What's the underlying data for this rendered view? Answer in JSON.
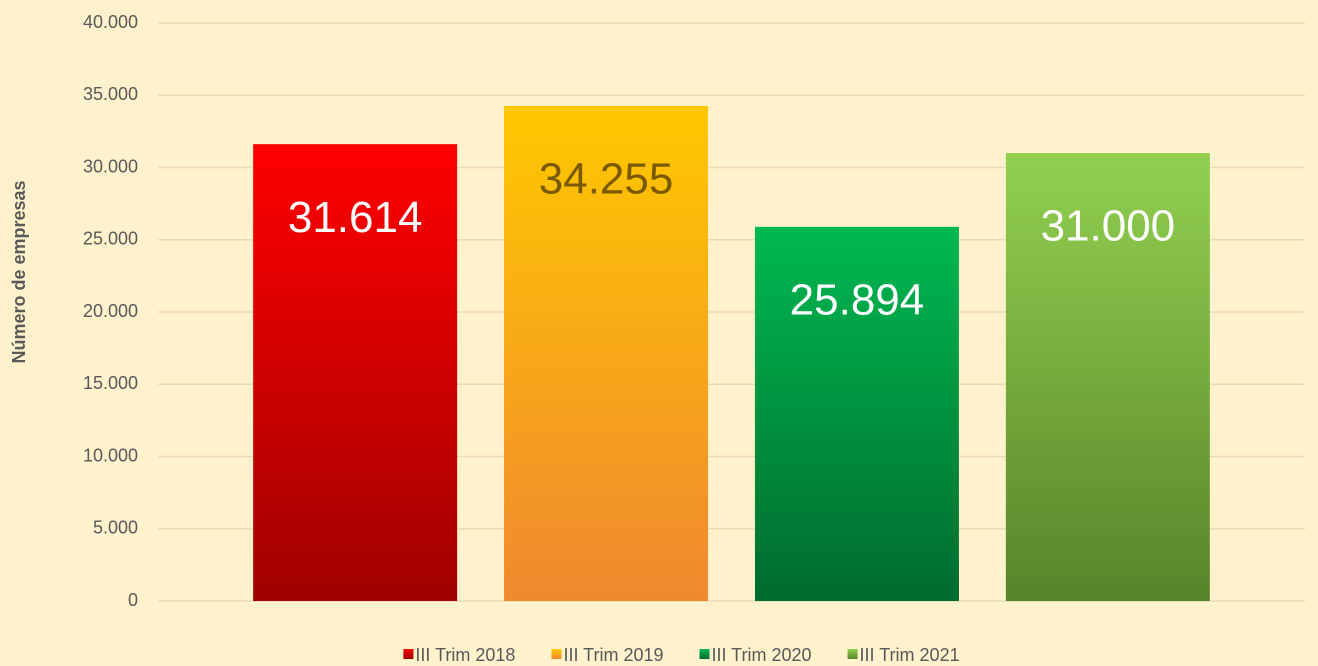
{
  "chart_data": {
    "type": "bar",
    "y_label": "Número de empresas",
    "categories": [
      null
    ],
    "series": [
      {
        "name": "III Trim 2018",
        "color": "#ff0000",
        "color_end": "#a00000",
        "label_color": "#ffffff",
        "values": [
          31614
        ],
        "value_labels": [
          "31.614"
        ]
      },
      {
        "name": "III Trim 2019",
        "color": "#ffc800",
        "color_end": "#f08830",
        "label_color": "#7a5a00",
        "values": [
          34255
        ],
        "value_labels": [
          "34.255"
        ]
      },
      {
        "name": "III Trim 2020",
        "color": "#00b850",
        "color_end": "#006b2e",
        "label_color": "#ffffff",
        "values": [
          25894
        ],
        "value_labels": [
          "25.894"
        ]
      },
      {
        "name": "III Trim 2021",
        "color": "#92d050",
        "color_end": "#58842a",
        "label_color": "#ffffff",
        "values": [
          31000
        ],
        "value_labels": [
          "31.000"
        ]
      }
    ],
    "ylim": [
      0,
      40000
    ],
    "yticks": [
      {
        "value": 0,
        "label": "0"
      },
      {
        "value": 5000,
        "label": "5.000"
      },
      {
        "value": 10000,
        "label": "10.000"
      },
      {
        "value": 15000,
        "label": "15.000"
      },
      {
        "value": 20000,
        "label": "20.000"
      },
      {
        "value": 25000,
        "label": "25.000"
      },
      {
        "value": 30000,
        "label": "30.000"
      },
      {
        "value": 35000,
        "label": "35.000"
      },
      {
        "value": 40000,
        "label": "40.000"
      }
    ],
    "grid": true,
    "legend": "bottom"
  }
}
